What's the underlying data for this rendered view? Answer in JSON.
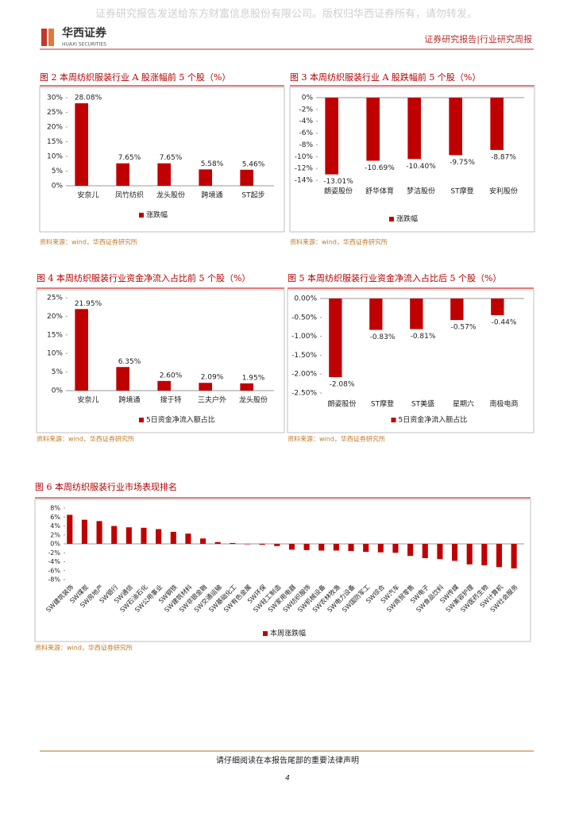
{
  "header": {
    "watermark": "证券研究报告发送给东方财富信息股份有限公司。版权归华西证券所有，请勿转发。",
    "logo": "华西证券",
    "logo_en": "HUAXI SECURITIES",
    "report_type": "证券研究报告|行业研究周报"
  },
  "chart_data": [
    {
      "type": "bar",
      "title": "图 2  本周纺织服装行业 A 股涨幅前 5 个股（%）",
      "categories": [
        "安奈儿",
        "凤竹纺织",
        "龙头股份",
        "跨境通",
        "ST起步"
      ],
      "series": [
        {
          "name": "涨跌幅",
          "color": "#c00000",
          "values": [
            28.08,
            7.65,
            7.65,
            5.58,
            5.46
          ],
          "value_labels": [
            "28.08%",
            "7.65%",
            "7.65%",
            "5.58%",
            "5.46%"
          ]
        }
      ],
      "ylim": [
        0,
        30
      ],
      "yticks": [
        {
          "value": 0,
          "label": "0%"
        },
        {
          "value": 5,
          "label": "5%"
        },
        {
          "value": 10,
          "label": "10%"
        },
        {
          "value": 15,
          "label": "15%"
        },
        {
          "value": 20,
          "label": "20%"
        },
        {
          "value": 25,
          "label": "25%"
        },
        {
          "value": 30,
          "label": "30%"
        }
      ],
      "source": "资料来源：wind，华西证券研究所"
    },
    {
      "type": "bar",
      "title": "图 3  本周纺织服装行业 A 股跌幅前 5 个股（%）",
      "categories": [
        "朗姿股份",
        "舒华体育",
        "梦洁股份",
        "ST摩登",
        "安利股份"
      ],
      "series": [
        {
          "name": "涨跌幅",
          "color": "#c00000",
          "values": [
            -13.01,
            -10.69,
            -10.4,
            -9.75,
            -8.87
          ],
          "value_labels": [
            "-13.01%",
            "-10.69%",
            "-10.40%",
            "-9.75%",
            "-8.87%"
          ]
        }
      ],
      "ylim": [
        -14,
        0
      ],
      "yticks": [
        {
          "value": 0,
          "label": "0%"
        },
        {
          "value": -2,
          "label": "-2%"
        },
        {
          "value": -4,
          "label": "-4%"
        },
        {
          "value": -6,
          "label": "-6%"
        },
        {
          "value": -8,
          "label": "-8%"
        },
        {
          "value": -10,
          "label": "-10%"
        },
        {
          "value": -12,
          "label": "-12%"
        },
        {
          "value": -14,
          "label": "-14%"
        }
      ],
      "source": "资料来源：wind，华西证券研究所"
    },
    {
      "type": "bar",
      "title": "图 4  本周纺织服装行业资金净流入占比前 5 个股（%）",
      "categories": [
        "安奈儿",
        "跨境通",
        "搜于特",
        "三夫户外",
        "龙头股份"
      ],
      "series": [
        {
          "name": "5日资金净流入额占比",
          "color": "#c00000",
          "values": [
            21.95,
            6.35,
            2.6,
            2.09,
            1.95
          ],
          "value_labels": [
            "21.95%",
            "6.35%",
            "2.60%",
            "2.09%",
            "1.95%"
          ]
        }
      ],
      "ylim": [
        0,
        25
      ],
      "yticks": [
        {
          "value": 0,
          "label": "0%"
        },
        {
          "value": 5,
          "label": "5%"
        },
        {
          "value": 10,
          "label": "10%"
        },
        {
          "value": 15,
          "label": "15%"
        },
        {
          "value": 20,
          "label": "20%"
        },
        {
          "value": 25,
          "label": "25%"
        }
      ],
      "source": "资料来源：wind，华西证券研究所"
    },
    {
      "type": "bar",
      "title": "图 5  本周纺织服装行业资金净流入占比后 5 个股（%）",
      "categories": [
        "朗姿股份",
        "ST摩登",
        "ST美盛",
        "星期六",
        "南极电商"
      ],
      "series": [
        {
          "name": "5日资金净流入额占比",
          "color": "#c00000",
          "values": [
            -2.08,
            -0.83,
            -0.81,
            -0.57,
            -0.44
          ],
          "value_labels": [
            "-2.08%",
            "-0.83%",
            "-0.81%",
            "-0.57%",
            "-0.44%"
          ]
        }
      ],
      "ylim": [
        -2.5,
        0
      ],
      "yticks": [
        {
          "value": 0,
          "label": "0.00%"
        },
        {
          "value": -0.5,
          "label": "-0.50%"
        },
        {
          "value": -1,
          "label": "-1.00%"
        },
        {
          "value": -1.5,
          "label": "-1.50%"
        },
        {
          "value": -2,
          "label": "-2.00%"
        },
        {
          "value": -2.5,
          "label": "-2.50%"
        }
      ],
      "source": "资料来源：wind，华西证券研究所"
    },
    {
      "type": "bar",
      "title": "图 6  本周纺织服装行业市场表现排名",
      "categories": [
        "SW建筑装饰",
        "SW煤炭",
        "SW房地产",
        "SW银行",
        "SW通信",
        "SW石油石化",
        "SW公用事业",
        "SW钢铁",
        "SW建筑材料",
        "SW非银金融",
        "SW交通运输",
        "SW基础化工",
        "SW有色金属",
        "SW环保",
        "SW轻工制造",
        "SW家用电器",
        "SW纺织服饰",
        "SW机械设备",
        "SW农林牧渔",
        "SW电力设备",
        "SW国防军工",
        "SW综合",
        "SW汽车",
        "SW商贸零售",
        "SW电子",
        "SW食品饮料",
        "SW传媒",
        "SW美容护理",
        "SW医药生物",
        "SW计算机",
        "SW社会服务"
      ],
      "series": [
        {
          "name": "本周涨跌幅",
          "color": "#c00000",
          "values": [
            6.5,
            5.4,
            5.1,
            4.0,
            3.7,
            3.6,
            3.3,
            2.7,
            2.3,
            1.2,
            0.4,
            0.2,
            -0.1,
            -0.2,
            -0.5,
            -1.3,
            -1.4,
            -1.5,
            -1.5,
            -1.6,
            -1.8,
            -1.9,
            -2.0,
            -2.7,
            -3.2,
            -3.4,
            -3.8,
            -4.6,
            -4.8,
            -5.2,
            -5.5
          ]
        }
      ],
      "ylim": [
        -8,
        8
      ],
      "yticks": [
        {
          "value": 8,
          "label": "8%"
        },
        {
          "value": 6,
          "label": "6%"
        },
        {
          "value": 4,
          "label": "4%"
        },
        {
          "value": 2,
          "label": "2%"
        },
        {
          "value": 0,
          "label": "0%"
        },
        {
          "value": -2,
          "label": "-2%"
        },
        {
          "value": -4,
          "label": "-4%"
        },
        {
          "value": -6,
          "label": "-6%"
        },
        {
          "value": -8,
          "label": "-8%"
        }
      ],
      "source": "资料来源：wind，华西证券研究所"
    }
  ],
  "footer": {
    "notice": "请仔细阅读在本报告尾部的重要法律声明",
    "page": "4"
  }
}
